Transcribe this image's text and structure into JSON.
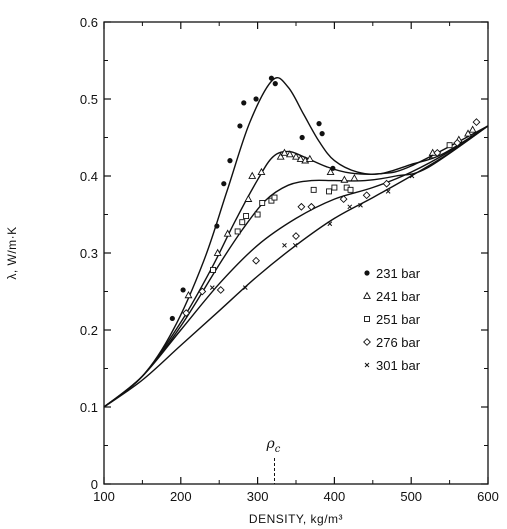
{
  "chart_data": {
    "type": "line",
    "xlabel": "DENSITY, kg/m³",
    "ylabel": "λ, W/m·K",
    "xlim": [
      100,
      600
    ],
    "ylim": [
      0,
      0.6
    ],
    "x_ticks": [
      "100",
      "200",
      "300",
      "400",
      "500",
      "600"
    ],
    "y_ticks": [
      "0",
      "0.1",
      "0.2",
      "0.3",
      "0.4",
      "0.5",
      "0.6"
    ],
    "grid": false,
    "legend_position": "right-center",
    "annotation": {
      "label": "ρc",
      "x": 322
    },
    "series": [
      {
        "name": "231 bar",
        "marker": "filled-circle",
        "curve": [
          [
            100,
            0.1
          ],
          [
            150,
            0.14
          ],
          [
            190,
            0.2
          ],
          [
            230,
            0.29
          ],
          [
            260,
            0.38
          ],
          [
            290,
            0.47
          ],
          [
            320,
            0.525
          ],
          [
            340,
            0.515
          ],
          [
            360,
            0.48
          ],
          [
            380,
            0.445
          ],
          [
            400,
            0.42
          ],
          [
            430,
            0.405
          ],
          [
            460,
            0.403
          ],
          [
            500,
            0.415
          ],
          [
            540,
            0.428
          ],
          [
            600,
            0.465
          ]
        ],
        "points": [
          [
            189,
            0.215
          ],
          [
            203,
            0.252
          ],
          [
            247,
            0.335
          ],
          [
            256,
            0.39
          ],
          [
            264,
            0.42
          ],
          [
            277,
            0.465
          ],
          [
            282,
            0.495
          ],
          [
            298,
            0.5
          ],
          [
            318,
            0.527
          ],
          [
            323,
            0.52
          ],
          [
            358,
            0.45
          ],
          [
            380,
            0.468
          ],
          [
            384,
            0.455
          ],
          [
            398,
            0.41
          ]
        ]
      },
      {
        "name": "241 bar",
        "marker": "triangle",
        "curve": [
          [
            100,
            0.1
          ],
          [
            150,
            0.14
          ],
          [
            200,
            0.21
          ],
          [
            240,
            0.28
          ],
          [
            270,
            0.34
          ],
          [
            300,
            0.395
          ],
          [
            320,
            0.425
          ],
          [
            340,
            0.432
          ],
          [
            360,
            0.425
          ],
          [
            390,
            0.412
          ],
          [
            420,
            0.404
          ],
          [
            460,
            0.403
          ],
          [
            500,
            0.413
          ],
          [
            600,
            0.465
          ]
        ],
        "points": [
          [
            210,
            0.245
          ],
          [
            248,
            0.3
          ],
          [
            261,
            0.325
          ],
          [
            288,
            0.37
          ],
          [
            293,
            0.4
          ],
          [
            305,
            0.405
          ],
          [
            330,
            0.425
          ],
          [
            335,
            0.43
          ],
          [
            342,
            0.428
          ],
          [
            350,
            0.425
          ],
          [
            356,
            0.422
          ],
          [
            362,
            0.42
          ],
          [
            368,
            0.422
          ],
          [
            395,
            0.405
          ],
          [
            413,
            0.395
          ],
          [
            426,
            0.397
          ],
          [
            528,
            0.43
          ],
          [
            562,
            0.447
          ],
          [
            574,
            0.455
          ],
          [
            580,
            0.46
          ]
        ]
      },
      {
        "name": "251 bar",
        "marker": "square",
        "curve": [
          [
            100,
            0.1
          ],
          [
            150,
            0.14
          ],
          [
            200,
            0.205
          ],
          [
            250,
            0.285
          ],
          [
            280,
            0.33
          ],
          [
            310,
            0.368
          ],
          [
            340,
            0.388
          ],
          [
            370,
            0.394
          ],
          [
            400,
            0.394
          ],
          [
            440,
            0.394
          ],
          [
            480,
            0.4
          ],
          [
            520,
            0.41
          ],
          [
            600,
            0.465
          ]
        ],
        "points": [
          [
            242,
            0.278
          ],
          [
            274,
            0.328
          ],
          [
            280,
            0.34
          ],
          [
            285,
            0.348
          ],
          [
            300,
            0.35
          ],
          [
            306,
            0.365
          ],
          [
            318,
            0.368
          ],
          [
            322,
            0.372
          ],
          [
            373,
            0.382
          ],
          [
            393,
            0.38
          ],
          [
            400,
            0.385
          ],
          [
            416,
            0.385
          ],
          [
            421,
            0.382
          ],
          [
            550,
            0.44
          ]
        ]
      },
      {
        "name": "276 bar",
        "marker": "diamond",
        "curve": [
          [
            100,
            0.1
          ],
          [
            150,
            0.14
          ],
          [
            200,
            0.2
          ],
          [
            250,
            0.26
          ],
          [
            300,
            0.31
          ],
          [
            350,
            0.345
          ],
          [
            400,
            0.37
          ],
          [
            450,
            0.385
          ],
          [
            500,
            0.405
          ],
          [
            550,
            0.432
          ],
          [
            600,
            0.465
          ]
        ],
        "points": [
          [
            207,
            0.222
          ],
          [
            228,
            0.25
          ],
          [
            252,
            0.252
          ],
          [
            298,
            0.29
          ],
          [
            350,
            0.322
          ],
          [
            357,
            0.36
          ],
          [
            370,
            0.36
          ],
          [
            412,
            0.37
          ],
          [
            442,
            0.375
          ],
          [
            468,
            0.39
          ],
          [
            534,
            0.43
          ],
          [
            560,
            0.443
          ],
          [
            585,
            0.47
          ]
        ]
      },
      {
        "name": "301 bar",
        "marker": "cross",
        "curve": [
          [
            100,
            0.1
          ],
          [
            150,
            0.135
          ],
          [
            200,
            0.18
          ],
          [
            250,
            0.225
          ],
          [
            300,
            0.27
          ],
          [
            350,
            0.31
          ],
          [
            400,
            0.345
          ],
          [
            450,
            0.372
          ],
          [
            500,
            0.4
          ],
          [
            550,
            0.43
          ],
          [
            600,
            0.465
          ]
        ],
        "points": [
          [
            241,
            0.255
          ],
          [
            284,
            0.255
          ],
          [
            335,
            0.31
          ],
          [
            349,
            0.31
          ],
          [
            394,
            0.338
          ],
          [
            420,
            0.36
          ],
          [
            434,
            0.362
          ],
          [
            470,
            0.38
          ],
          [
            501,
            0.4
          ],
          [
            526,
            0.425
          ]
        ]
      }
    ]
  }
}
